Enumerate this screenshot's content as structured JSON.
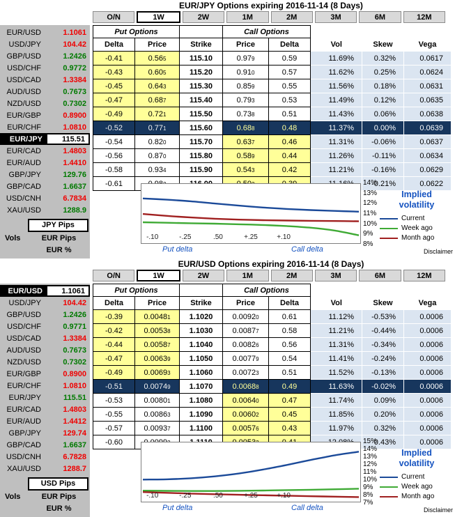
{
  "colors": {
    "up": "#007a00",
    "down": "#f00000",
    "yellow_cell": "#ffff99",
    "blue_cell": "#dbe5f1",
    "atm_row": "#17365d",
    "sidebar_bg": "#bfbfbf",
    "tab_inactive": "#d9d9d9",
    "legend_blue": "#1553c0"
  },
  "panels": [
    {
      "title": "EUR/JPY Options expiring 2016-11-14 (8 Days)",
      "tabs": [
        {
          "label": "O/N",
          "active": false
        },
        {
          "label": "1W",
          "active": true
        },
        {
          "label": "2W",
          "active": false
        },
        {
          "label": "1M",
          "active": false
        },
        {
          "label": "2M",
          "active": false
        },
        {
          "label": "3M",
          "active": false
        },
        {
          "label": "6M",
          "active": false
        },
        {
          "label": "12M",
          "active": false
        }
      ],
      "sidebar": {
        "pairs": [
          {
            "pair": "EUR/USD",
            "rate": "1.1061",
            "dir": "down"
          },
          {
            "pair": "USD/JPY",
            "rate": "104.42",
            "dir": "down"
          },
          {
            "pair": "GBP/USD",
            "rate": "1.2426",
            "dir": "up"
          },
          {
            "pair": "USD/CHF",
            "rate": "0.9772",
            "dir": "up"
          },
          {
            "pair": "USD/CAD",
            "rate": "1.3384",
            "dir": "down"
          },
          {
            "pair": "AUD/USD",
            "rate": "0.7673",
            "dir": "up"
          },
          {
            "pair": "NZD/USD",
            "rate": "0.7302",
            "dir": "up"
          },
          {
            "pair": "EUR/GBP",
            "rate": "0.8900",
            "dir": "down"
          },
          {
            "pair": "EUR/CHF",
            "rate": "1.0810",
            "dir": "down"
          },
          {
            "pair": "EUR/JPY",
            "rate": "115.51",
            "selected": true
          },
          {
            "pair": "EUR/CAD",
            "rate": "1.4803",
            "dir": "down"
          },
          {
            "pair": "EUR/AUD",
            "rate": "1.4410",
            "dir": "down"
          },
          {
            "pair": "GBP/JPY",
            "rate": "129.76",
            "dir": "up"
          },
          {
            "pair": "GBP/CAD",
            "rate": "1.6637",
            "dir": "up"
          },
          {
            "pair": "USD/CNH",
            "rate": "6.7834",
            "dir": "down"
          },
          {
            "pair": "XAU/USD",
            "rate": "1288.9",
            "dir": "up"
          }
        ],
        "pips_label": "JPY Pips",
        "vols_label": "Vols",
        "pips_row": "EUR Pips",
        "pct_row": "EUR %"
      },
      "table": {
        "put_group": "Put Options",
        "call_group": "Call Options",
        "col_headers": [
          "Delta",
          "Price",
          "Strike",
          "Price",
          "Delta",
          "Vol",
          "Skew",
          "Vega"
        ],
        "rows": [
          {
            "pd": "-0.41",
            "pp": "0.56",
            "pps": "5",
            "k": "115.10",
            "cp": "0.97",
            "cps": "9",
            "cd": "0.59",
            "vol": "11.69%",
            "skew": "0.32%",
            "vega": "0.0617"
          },
          {
            "pd": "-0.43",
            "pp": "0.60",
            "pps": "5",
            "k": "115.20",
            "cp": "0.91",
            "cps": "0",
            "cd": "0.57",
            "vol": "11.62%",
            "skew": "0.25%",
            "vega": "0.0624"
          },
          {
            "pd": "-0.45",
            "pp": "0.64",
            "pps": "3",
            "k": "115.30",
            "cp": "0.85",
            "cps": "9",
            "cd": "0.55",
            "vol": "11.56%",
            "skew": "0.18%",
            "vega": "0.0631"
          },
          {
            "pd": "-0.47",
            "pp": "0.68",
            "pps": "7",
            "k": "115.40",
            "cp": "0.79",
            "cps": "3",
            "cd": "0.53",
            "vol": "11.49%",
            "skew": "0.12%",
            "vega": "0.0635"
          },
          {
            "pd": "-0.49",
            "pp": "0.72",
            "pps": "1",
            "k": "115.50",
            "cp": "0.73",
            "cps": "8",
            "cd": "0.51",
            "vol": "11.43%",
            "skew": "0.06%",
            "vega": "0.0638"
          },
          {
            "pd": "-0.52",
            "pp": "0.77",
            "pps": "1",
            "k": "115.60",
            "cp": "0.68",
            "cps": "8",
            "cd": "0.48",
            "vol": "11.37%",
            "skew": "0.00%",
            "vega": "0.0639"
          },
          {
            "pd": "-0.54",
            "pp": "0.82",
            "pps": "0",
            "k": "115.70",
            "cp": "0.63",
            "cps": "7",
            "cd": "0.46",
            "vol": "11.31%",
            "skew": "-0.06%",
            "vega": "0.0637"
          },
          {
            "pd": "-0.56",
            "pp": "0.87",
            "pps": "0",
            "k": "115.80",
            "cp": "0.58",
            "cps": "9",
            "cd": "0.44",
            "vol": "11.26%",
            "skew": "-0.11%",
            "vega": "0.0634"
          },
          {
            "pd": "-0.58",
            "pp": "0.93",
            "pps": "4",
            "k": "115.90",
            "cp": "0.54",
            "cps": "3",
            "cd": "0.42",
            "vol": "11.21%",
            "skew": "-0.16%",
            "vega": "0.0629"
          },
          {
            "pd": "-0.61",
            "pp": "0.98",
            "pps": "2",
            "k": "116.00",
            "cp": "0.50",
            "cps": "2",
            "cd": "0.39",
            "vol": "11.16%",
            "skew": "-0.21%",
            "vega": "0.0622"
          }
        ]
      },
      "chart": {
        "type": "line",
        "y_min": 8,
        "y_max": 14,
        "y_labels": [
          "14%",
          "13%",
          "12%",
          "11%",
          "10%",
          "9%",
          "8%"
        ],
        "x_labels": [
          "-.10",
          "-.25",
          ".50",
          "+.25",
          "+.10"
        ],
        "legend_title": "Implied volatility",
        "x_axis_left_label": "Put delta",
        "x_axis_right_label": "Call delta",
        "disclaimer": "Disclaimer",
        "series": [
          {
            "name": "Current",
            "color": "#1b4a99",
            "values": [
              12.55,
              12.42,
              12.25,
              12.02,
              11.8,
              11.6,
              11.45,
              11.33,
              11.24,
              11.16
            ]
          },
          {
            "name": "Week ago",
            "color": "#3faa35",
            "values": [
              10.05,
              10.0,
              9.95,
              9.9,
              9.84,
              9.76,
              9.65,
              9.48,
              9.18,
              8.68
            ]
          },
          {
            "name": "Month ago",
            "color": "#a02020",
            "values": [
              10.92,
              10.72,
              10.55,
              10.42,
              10.33,
              10.27,
              10.23,
              10.2,
              10.18,
              10.15
            ]
          }
        ]
      }
    },
    {
      "title": "EUR/USD Options expiring 2016-11-14 (8 Days)",
      "tabs": [
        {
          "label": "O/N",
          "active": false
        },
        {
          "label": "1W",
          "active": true
        },
        {
          "label": "2W",
          "active": false
        },
        {
          "label": "1M",
          "active": false
        },
        {
          "label": "2M",
          "active": false
        },
        {
          "label": "3M",
          "active": false
        },
        {
          "label": "6M",
          "active": false
        },
        {
          "label": "12M",
          "active": false
        }
      ],
      "sidebar": {
        "pairs": [
          {
            "pair": "EUR/USD",
            "rate": "1.1061",
            "selected": true
          },
          {
            "pair": "USD/JPY",
            "rate": "104.42",
            "dir": "down"
          },
          {
            "pair": "GBP/USD",
            "rate": "1.2426",
            "dir": "up"
          },
          {
            "pair": "USD/CHF",
            "rate": "0.9771",
            "dir": "up"
          },
          {
            "pair": "USD/CAD",
            "rate": "1.3384",
            "dir": "down"
          },
          {
            "pair": "AUD/USD",
            "rate": "0.7673",
            "dir": "up"
          },
          {
            "pair": "NZD/USD",
            "rate": "0.7302",
            "dir": "up"
          },
          {
            "pair": "EUR/GBP",
            "rate": "0.8900",
            "dir": "down"
          },
          {
            "pair": "EUR/CHF",
            "rate": "1.0810",
            "dir": "down"
          },
          {
            "pair": "EUR/JPY",
            "rate": "115.51",
            "dir": "up"
          },
          {
            "pair": "EUR/CAD",
            "rate": "1.4803",
            "dir": "down"
          },
          {
            "pair": "EUR/AUD",
            "rate": "1.4412",
            "dir": "down"
          },
          {
            "pair": "GBP/JPY",
            "rate": "129.74",
            "dir": "down"
          },
          {
            "pair": "GBP/CAD",
            "rate": "1.6637",
            "dir": "up"
          },
          {
            "pair": "USD/CNH",
            "rate": "6.7828",
            "dir": "down"
          },
          {
            "pair": "XAU/USD",
            "rate": "1288.7",
            "dir": "down"
          }
        ],
        "pips_label": "USD Pips",
        "vols_label": "Vols",
        "pips_row": "EUR Pips",
        "pct_row": "EUR %"
      },
      "table": {
        "put_group": "Put Options",
        "call_group": "Call Options",
        "col_headers": [
          "Delta",
          "Price",
          "Strike",
          "Price",
          "Delta",
          "Vol",
          "Skew",
          "Vega"
        ],
        "rows": [
          {
            "pd": "-0.39",
            "pp": "0.0048",
            "pps": "1",
            "k": "1.1020",
            "cp": "0.0092",
            "cps": "0",
            "cd": "0.61",
            "vol": "11.12%",
            "skew": "-0.53%",
            "vega": "0.0006"
          },
          {
            "pd": "-0.42",
            "pp": "0.0053",
            "pps": "8",
            "k": "1.1030",
            "cp": "0.0087",
            "cps": "7",
            "cd": "0.58",
            "vol": "11.21%",
            "skew": "-0.44%",
            "vega": "0.0006"
          },
          {
            "pd": "-0.44",
            "pp": "0.0058",
            "pps": "7",
            "k": "1.1040",
            "cp": "0.0082",
            "cps": "6",
            "cd": "0.56",
            "vol": "11.31%",
            "skew": "-0.34%",
            "vega": "0.0006"
          },
          {
            "pd": "-0.47",
            "pp": "0.0063",
            "pps": "9",
            "k": "1.1050",
            "cp": "0.0077",
            "cps": "9",
            "cd": "0.54",
            "vol": "11.41%",
            "skew": "-0.24%",
            "vega": "0.0006"
          },
          {
            "pd": "-0.49",
            "pp": "0.0069",
            "pps": "3",
            "k": "1.1060",
            "cp": "0.0072",
            "cps": "3",
            "cd": "0.51",
            "vol": "11.52%",
            "skew": "-0.13%",
            "vega": "0.0006"
          },
          {
            "pd": "-0.51",
            "pp": "0.0074",
            "pps": "9",
            "k": "1.1070",
            "cp": "0.0068",
            "cps": "8",
            "cd": "0.49",
            "vol": "11.63%",
            "skew": "-0.02%",
            "vega": "0.0006"
          },
          {
            "pd": "-0.53",
            "pp": "0.0080",
            "pps": "1",
            "k": "1.1080",
            "cp": "0.0064",
            "cps": "0",
            "cd": "0.47",
            "vol": "11.74%",
            "skew": "0.09%",
            "vega": "0.0006"
          },
          {
            "pd": "-0.55",
            "pp": "0.0086",
            "pps": "3",
            "k": "1.1090",
            "cp": "0.0060",
            "cps": "2",
            "cd": "0.45",
            "vol": "11.85%",
            "skew": "0.20%",
            "vega": "0.0006"
          },
          {
            "pd": "-0.57",
            "pp": "0.0093",
            "pps": "7",
            "k": "1.1100",
            "cp": "0.0057",
            "cps": "6",
            "cd": "0.43",
            "vol": "11.97%",
            "skew": "0.32%",
            "vega": "0.0006"
          },
          {
            "pd": "-0.60",
            "pp": "0.0099",
            "pps": "3",
            "k": "1.1110",
            "cp": "0.0053",
            "cps": "2",
            "cd": "0.41",
            "vol": "12.08%",
            "skew": "0.43%",
            "vega": "0.0006"
          }
        ]
      },
      "chart": {
        "type": "line",
        "y_min": 7,
        "y_max": 15,
        "y_labels": [
          "15%",
          "14%",
          "13%",
          "12%",
          "11%",
          "10%",
          "9%",
          "8%",
          "7%"
        ],
        "x_labels": [
          "-.10",
          "-.25",
          ".50",
          "+.25",
          "+.10"
        ],
        "legend_title": "Implied volatility",
        "x_axis_left_label": "Put delta",
        "x_axis_right_label": "Call delta",
        "disclaimer": "Disclaimer",
        "series": [
          {
            "name": "Current",
            "color": "#1b4a99",
            "values": [
              9.9,
              9.94,
              10.08,
              10.35,
              10.75,
              11.3,
              11.95,
              12.65,
              13.3,
              13.8
            ]
          },
          {
            "name": "Week ago",
            "color": "#3faa35",
            "values": [
              8.35,
              8.32,
              8.3,
              8.3,
              8.33,
              8.37,
              8.42,
              8.47,
              8.54,
              8.62
            ]
          },
          {
            "name": "Month ago",
            "color": "#a02020",
            "values": [
              8.15,
              8.04,
              7.94,
              7.85,
              7.77,
              7.7,
              7.64,
              7.57,
              7.51,
              7.45
            ]
          }
        ]
      }
    }
  ]
}
